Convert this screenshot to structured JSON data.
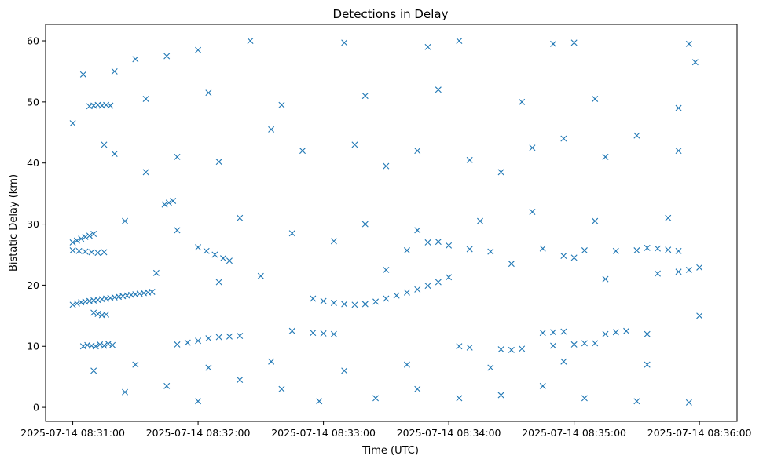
{
  "chart_data": {
    "type": "scatter",
    "title": "Detections in Delay",
    "xlabel": "Time (UTC)",
    "ylabel": "Bistatic Delay (km)",
    "x_axis": "time",
    "xlim": [
      "2025-07-14 08:30:47",
      "2025-07-14 08:36:18"
    ],
    "ylim": [
      -2.3,
      62.7
    ],
    "x_ticks": [
      "2025-07-14 08:31:00",
      "2025-07-14 08:32:00",
      "2025-07-14 08:33:00",
      "2025-07-14 08:34:00",
      "2025-07-14 08:35:00",
      "2025-07-14 08:36:00"
    ],
    "y_ticks": [
      0,
      10,
      20,
      30,
      40,
      50,
      60
    ],
    "grid": false,
    "marker": "x",
    "color": "#1f77b4",
    "series": [
      {
        "points": [
          [
            "2025-07-14 08:31:00",
            16.8
          ],
          [
            "2025-07-14 08:31:02",
            17.0
          ],
          [
            "2025-07-14 08:31:04",
            17.2
          ],
          [
            "2025-07-14 08:31:06",
            17.3
          ],
          [
            "2025-07-14 08:31:08",
            17.4
          ],
          [
            "2025-07-14 08:31:10",
            17.5
          ],
          [
            "2025-07-14 08:31:12",
            17.6
          ],
          [
            "2025-07-14 08:31:14",
            17.7
          ],
          [
            "2025-07-14 08:31:16",
            17.8
          ],
          [
            "2025-07-14 08:31:18",
            17.9
          ],
          [
            "2025-07-14 08:31:20",
            18.0
          ],
          [
            "2025-07-14 08:31:22",
            18.1
          ],
          [
            "2025-07-14 08:31:24",
            18.2
          ],
          [
            "2025-07-14 08:31:26",
            18.3
          ],
          [
            "2025-07-14 08:31:28",
            18.4
          ],
          [
            "2025-07-14 08:31:30",
            18.5
          ],
          [
            "2025-07-14 08:31:32",
            18.6
          ],
          [
            "2025-07-14 08:31:34",
            18.7
          ],
          [
            "2025-07-14 08:31:36",
            18.8
          ],
          [
            "2025-07-14 08:31:38",
            18.9
          ],
          [
            "2025-07-14 08:31:00",
            27.0
          ],
          [
            "2025-07-14 08:31:02",
            27.3
          ],
          [
            "2025-07-14 08:31:04",
            27.6
          ],
          [
            "2025-07-14 08:31:06",
            27.9
          ],
          [
            "2025-07-14 08:31:08",
            28.1
          ],
          [
            "2025-07-14 08:31:10",
            28.4
          ],
          [
            "2025-07-14 08:31:00",
            25.7
          ],
          [
            "2025-07-14 08:31:03",
            25.6
          ],
          [
            "2025-07-14 08:31:06",
            25.5
          ],
          [
            "2025-07-14 08:31:09",
            25.4
          ],
          [
            "2025-07-14 08:31:12",
            25.3
          ],
          [
            "2025-07-14 08:31:15",
            25.4
          ],
          [
            "2025-07-14 08:31:05",
            10.0
          ],
          [
            "2025-07-14 08:31:07",
            10.2
          ],
          [
            "2025-07-14 08:31:09",
            10.1
          ],
          [
            "2025-07-14 08:31:11",
            10.0
          ],
          [
            "2025-07-14 08:31:13",
            10.3
          ],
          [
            "2025-07-14 08:31:15",
            10.1
          ],
          [
            "2025-07-14 08:31:17",
            10.4
          ],
          [
            "2025-07-14 08:31:19",
            10.2
          ],
          [
            "2025-07-14 08:31:08",
            49.3
          ],
          [
            "2025-07-14 08:31:10",
            49.4
          ],
          [
            "2025-07-14 08:31:12",
            49.5
          ],
          [
            "2025-07-14 08:31:14",
            49.4
          ],
          [
            "2025-07-14 08:31:16",
            49.5
          ],
          [
            "2025-07-14 08:31:18",
            49.4
          ],
          [
            "2025-07-14 08:31:10",
            15.5
          ],
          [
            "2025-07-14 08:31:12",
            15.3
          ],
          [
            "2025-07-14 08:31:14",
            15.1
          ],
          [
            "2025-07-14 08:31:16",
            15.2
          ],
          [
            "2025-07-14 08:31:44",
            33.2
          ],
          [
            "2025-07-14 08:31:46",
            33.5
          ],
          [
            "2025-07-14 08:31:48",
            33.8
          ],
          [
            "2025-07-14 08:31:50",
            10.3
          ],
          [
            "2025-07-14 08:31:55",
            10.6
          ],
          [
            "2025-07-14 08:32:00",
            10.9
          ],
          [
            "2025-07-14 08:32:05",
            11.3
          ],
          [
            "2025-07-14 08:32:00",
            26.2
          ],
          [
            "2025-07-14 08:32:04",
            25.6
          ],
          [
            "2025-07-14 08:32:08",
            25.0
          ],
          [
            "2025-07-14 08:32:12",
            24.4
          ],
          [
            "2025-07-14 08:32:15",
            24.0
          ],
          [
            "2025-07-14 08:32:10",
            11.5
          ],
          [
            "2025-07-14 08:32:15",
            11.6
          ],
          [
            "2025-07-14 08:32:20",
            11.7
          ],
          [
            "2025-07-14 08:32:45",
            12.5
          ],
          [
            "2025-07-14 08:32:55",
            12.2
          ],
          [
            "2025-07-14 08:33:00",
            12.1
          ],
          [
            "2025-07-14 08:33:05",
            12.0
          ],
          [
            "2025-07-14 08:32:55",
            17.8
          ],
          [
            "2025-07-14 08:33:00",
            17.4
          ],
          [
            "2025-07-14 08:33:05",
            17.1
          ],
          [
            "2025-07-14 08:33:10",
            16.9
          ],
          [
            "2025-07-14 08:33:15",
            16.8
          ],
          [
            "2025-07-14 08:33:20",
            16.9
          ],
          [
            "2025-07-14 08:33:25",
            17.3
          ],
          [
            "2025-07-14 08:33:30",
            17.8
          ],
          [
            "2025-07-14 08:33:35",
            18.3
          ],
          [
            "2025-07-14 08:33:40",
            18.8
          ],
          [
            "2025-07-14 08:33:45",
            19.3
          ],
          [
            "2025-07-14 08:33:50",
            19.9
          ],
          [
            "2025-07-14 08:33:55",
            20.5
          ],
          [
            "2025-07-14 08:34:00",
            21.3
          ],
          [
            "2025-07-14 08:33:05",
            27.2
          ],
          [
            "2025-07-14 08:33:40",
            25.7
          ],
          [
            "2025-07-14 08:33:50",
            27.0
          ],
          [
            "2025-07-14 08:33:55",
            27.1
          ],
          [
            "2025-07-14 08:34:00",
            26.5
          ],
          [
            "2025-07-14 08:34:10",
            25.9
          ],
          [
            "2025-07-14 08:34:20",
            25.5
          ],
          [
            "2025-07-14 08:34:05",
            10.0
          ],
          [
            "2025-07-14 08:34:10",
            9.8
          ],
          [
            "2025-07-14 08:34:25",
            9.5
          ],
          [
            "2025-07-14 08:34:30",
            9.4
          ],
          [
            "2025-07-14 08:34:35",
            9.6
          ],
          [
            "2025-07-14 08:34:45",
            12.2
          ],
          [
            "2025-07-14 08:34:50",
            12.3
          ],
          [
            "2025-07-14 08:34:55",
            12.4
          ],
          [
            "2025-07-14 08:34:50",
            10.1
          ],
          [
            "2025-07-14 08:35:00",
            10.3
          ],
          [
            "2025-07-14 08:35:05",
            10.5
          ],
          [
            "2025-07-14 08:35:10",
            10.5
          ],
          [
            "2025-07-14 08:35:15",
            12.0
          ],
          [
            "2025-07-14 08:35:20",
            12.3
          ],
          [
            "2025-07-14 08:35:25",
            12.5
          ],
          [
            "2025-07-14 08:34:45",
            26.0
          ],
          [
            "2025-07-14 08:34:55",
            24.8
          ],
          [
            "2025-07-14 08:35:00",
            24.5
          ],
          [
            "2025-07-14 08:35:05",
            25.7
          ],
          [
            "2025-07-14 08:35:20",
            25.6
          ],
          [
            "2025-07-14 08:35:30",
            25.7
          ],
          [
            "2025-07-14 08:35:35",
            26.1
          ],
          [
            "2025-07-14 08:35:40",
            26.0
          ],
          [
            "2025-07-14 08:35:45",
            25.8
          ],
          [
            "2025-07-14 08:35:50",
            25.6
          ],
          [
            "2025-07-14 08:35:40",
            21.9
          ],
          [
            "2025-07-14 08:35:50",
            22.2
          ],
          [
            "2025-07-14 08:35:55",
            22.5
          ],
          [
            "2025-07-14 08:36:00",
            22.9
          ],
          [
            "2025-07-14 08:35:35",
            12.0
          ],
          [
            "2025-07-14 08:31:05",
            54.5
          ],
          [
            "2025-07-14 08:31:20",
            55.0
          ],
          [
            "2025-07-14 08:31:30",
            57.0
          ],
          [
            "2025-07-14 08:31:45",
            57.5
          ],
          [
            "2025-07-14 08:32:00",
            58.5
          ],
          [
            "2025-07-14 08:32:25",
            60.0
          ],
          [
            "2025-07-14 08:33:10",
            59.7
          ],
          [
            "2025-07-14 08:33:50",
            59.0
          ],
          [
            "2025-07-14 08:34:05",
            60.0
          ],
          [
            "2025-07-14 08:34:50",
            59.5
          ],
          [
            "2025-07-14 08:35:00",
            59.7
          ],
          [
            "2025-07-14 08:35:55",
            59.5
          ],
          [
            "2025-07-14 08:31:00",
            46.5
          ],
          [
            "2025-07-14 08:31:15",
            43.0
          ],
          [
            "2025-07-14 08:31:20",
            41.5
          ],
          [
            "2025-07-14 08:31:35",
            38.5
          ],
          [
            "2025-07-14 08:31:50",
            41.0
          ],
          [
            "2025-07-14 08:32:10",
            40.2
          ],
          [
            "2025-07-14 08:32:35",
            45.5
          ],
          [
            "2025-07-14 08:32:50",
            42.0
          ],
          [
            "2025-07-14 08:33:15",
            43.0
          ],
          [
            "2025-07-14 08:33:30",
            39.5
          ],
          [
            "2025-07-14 08:33:45",
            42.0
          ],
          [
            "2025-07-14 08:34:10",
            40.5
          ],
          [
            "2025-07-14 08:34:25",
            38.5
          ],
          [
            "2025-07-14 08:34:40",
            42.5
          ],
          [
            "2025-07-14 08:34:55",
            44.0
          ],
          [
            "2025-07-14 08:35:15",
            41.0
          ],
          [
            "2025-07-14 08:35:30",
            44.5
          ],
          [
            "2025-07-14 08:35:50",
            42.0
          ],
          [
            "2025-07-14 08:31:25",
            30.5
          ],
          [
            "2025-07-14 08:31:50",
            29.0
          ],
          [
            "2025-07-14 08:32:20",
            31.0
          ],
          [
            "2025-07-14 08:32:45",
            28.5
          ],
          [
            "2025-07-14 08:33:20",
            30.0
          ],
          [
            "2025-07-14 08:33:45",
            29.0
          ],
          [
            "2025-07-14 08:34:15",
            30.5
          ],
          [
            "2025-07-14 08:34:40",
            32.0
          ],
          [
            "2025-07-14 08:35:10",
            30.5
          ],
          [
            "2025-07-14 08:35:45",
            31.0
          ],
          [
            "2025-07-14 08:31:10",
            6.0
          ],
          [
            "2025-07-14 08:31:25",
            2.5
          ],
          [
            "2025-07-14 08:31:45",
            3.5
          ],
          [
            "2025-07-14 08:32:00",
            1.0
          ],
          [
            "2025-07-14 08:32:20",
            4.5
          ],
          [
            "2025-07-14 08:32:40",
            3.0
          ],
          [
            "2025-07-14 08:32:58",
            1.0
          ],
          [
            "2025-07-14 08:33:25",
            1.5
          ],
          [
            "2025-07-14 08:33:45",
            3.0
          ],
          [
            "2025-07-14 08:34:05",
            1.5
          ],
          [
            "2025-07-14 08:34:25",
            2.0
          ],
          [
            "2025-07-14 08:34:45",
            3.5
          ],
          [
            "2025-07-14 08:35:05",
            1.5
          ],
          [
            "2025-07-14 08:35:30",
            1.0
          ],
          [
            "2025-07-14 08:35:55",
            0.8
          ],
          [
            "2025-07-14 08:31:30",
            7.0
          ],
          [
            "2025-07-14 08:32:05",
            6.5
          ],
          [
            "2025-07-14 08:32:35",
            7.5
          ],
          [
            "2025-07-14 08:33:10",
            6.0
          ],
          [
            "2025-07-14 08:33:40",
            7.0
          ],
          [
            "2025-07-14 08:34:20",
            6.5
          ],
          [
            "2025-07-14 08:34:55",
            7.5
          ],
          [
            "2025-07-14 08:35:35",
            7.0
          ],
          [
            "2025-07-14 08:36:00",
            15.0
          ],
          [
            "2025-07-14 08:35:58",
            56.5
          ],
          [
            "2025-07-14 08:31:40",
            22.0
          ],
          [
            "2025-07-14 08:32:10",
            20.5
          ],
          [
            "2025-07-14 08:32:30",
            21.5
          ],
          [
            "2025-07-14 08:33:30",
            22.5
          ],
          [
            "2025-07-14 08:34:30",
            23.5
          ],
          [
            "2025-07-14 08:35:15",
            21.0
          ],
          [
            "2025-07-14 08:31:35",
            50.5
          ],
          [
            "2025-07-14 08:32:05",
            51.5
          ],
          [
            "2025-07-14 08:32:40",
            49.5
          ],
          [
            "2025-07-14 08:33:20",
            51.0
          ],
          [
            "2025-07-14 08:33:55",
            52.0
          ],
          [
            "2025-07-14 08:34:35",
            50.0
          ],
          [
            "2025-07-14 08:35:10",
            50.5
          ],
          [
            "2025-07-14 08:35:50",
            49.0
          ]
        ]
      }
    ]
  }
}
